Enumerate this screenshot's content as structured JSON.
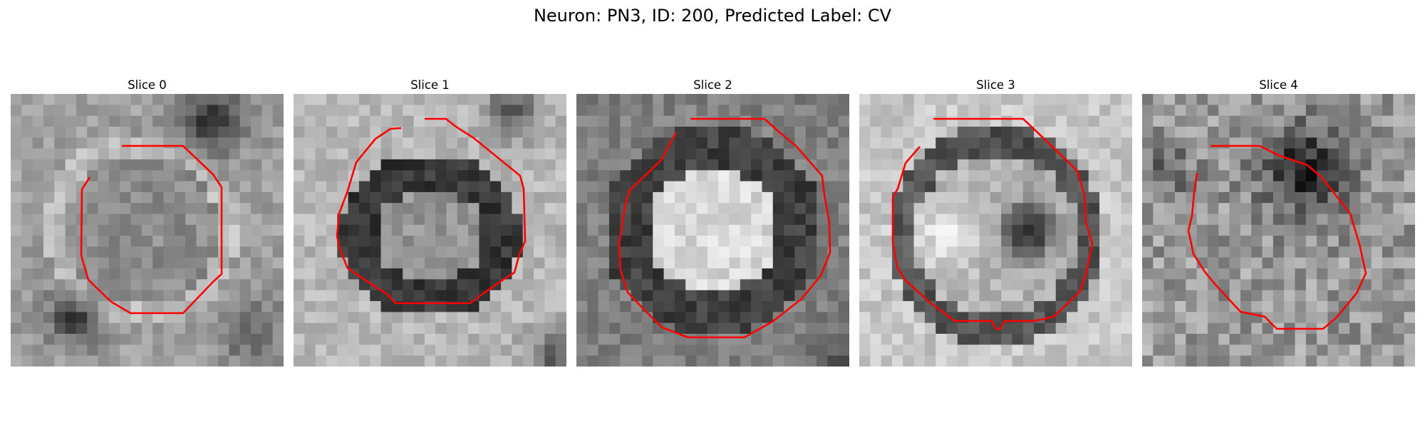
{
  "figure": {
    "title": "Neuron: PN3, ID: 200, Predicted Label: CV"
  },
  "panels": [
    {
      "title": "Slice 0"
    },
    {
      "title": "Slice 1"
    },
    {
      "title": "Slice 2"
    },
    {
      "title": "Slice 3"
    },
    {
      "title": "Slice 4"
    }
  ],
  "colors": {
    "contour": "#ff0000",
    "background": "#ffffff"
  }
}
